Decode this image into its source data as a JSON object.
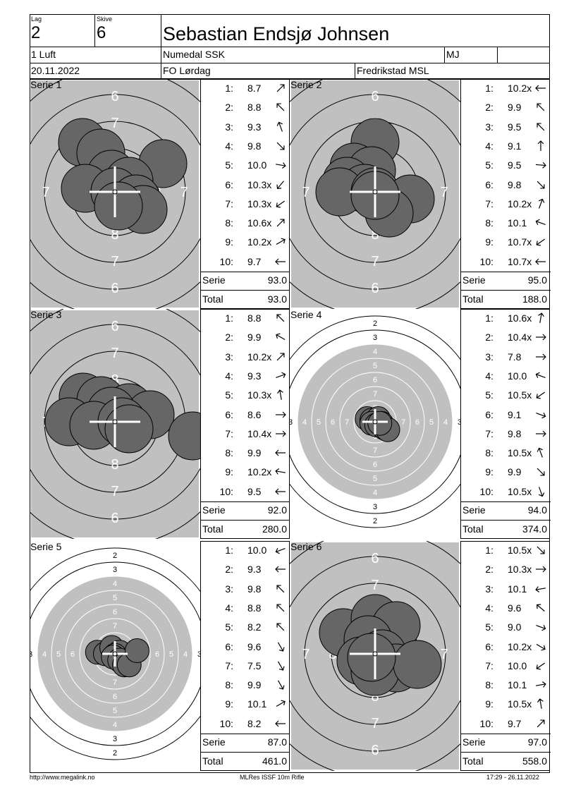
{
  "header": {
    "lag_label": "Lag",
    "lag_value": "2",
    "skive_label": "Skive",
    "skive_value": "6",
    "shooter_name": "Sebastian Endsjø Johnsen",
    "class": "1 Luft",
    "club": "Numedal SSK",
    "club_code": "MJ",
    "date": "20.11.2022",
    "event": "FO Lørdag",
    "venue": "Fredrikstad MSL"
  },
  "labels": {
    "serie": "Serie",
    "total": "Total"
  },
  "series": [
    {
      "label": "Serie 1",
      "target": "inner",
      "shots": [
        {
          "n": "1:",
          "v": "8.7",
          "dir": 45
        },
        {
          "n": "2:",
          "v": "8.8",
          "dir": -45
        },
        {
          "n": "3:",
          "v": "9.3",
          "dir": -20
        },
        {
          "n": "4:",
          "v": "9.8",
          "dir": 135
        },
        {
          "n": "5:",
          "v": "10.0",
          "dir": 100
        },
        {
          "n": "6:",
          "v": "10.3x",
          "dir": 220
        },
        {
          "n": "7:",
          "v": "10.3x",
          "dir": 235
        },
        {
          "n": "8:",
          "v": "10.6x",
          "dir": 45
        },
        {
          "n": "9:",
          "v": "10.2x",
          "dir": 60
        },
        {
          "n": "10:",
          "v": "9.7",
          "dir": 270
        }
      ],
      "serie_total": "93.0",
      "running_total": "93.0"
    },
    {
      "label": "Serie 2",
      "target": "inner",
      "shots": [
        {
          "n": "1:",
          "v": "10.2x",
          "dir": 270
        },
        {
          "n": "2:",
          "v": "9.9",
          "dir": -45
        },
        {
          "n": "3:",
          "v": "9.5",
          "dir": -45
        },
        {
          "n": "4:",
          "v": "9.1",
          "dir": 0
        },
        {
          "n": "5:",
          "v": "9.5",
          "dir": 95
        },
        {
          "n": "6:",
          "v": "9.8",
          "dir": 135
        },
        {
          "n": "7:",
          "v": "10.2x",
          "dir": 20
        },
        {
          "n": "8:",
          "v": "10.1",
          "dir": -70
        },
        {
          "n": "9:",
          "v": "10.7x",
          "dir": 235
        },
        {
          "n": "10:",
          "v": "10.7x",
          "dir": 270
        }
      ],
      "serie_total": "95.0",
      "running_total": "188.0"
    },
    {
      "label": "Serie 3",
      "target": "inner",
      "shots": [
        {
          "n": "1:",
          "v": "8.8",
          "dir": -45
        },
        {
          "n": "2:",
          "v": "9.9",
          "dir": -60
        },
        {
          "n": "3:",
          "v": "10.2x",
          "dir": 45
        },
        {
          "n": "4:",
          "v": "9.3",
          "dir": 70
        },
        {
          "n": "5:",
          "v": "10.3x",
          "dir": -10
        },
        {
          "n": "6:",
          "v": "8.6",
          "dir": 90
        },
        {
          "n": "7:",
          "v": "10.4x",
          "dir": 90
        },
        {
          "n": "8:",
          "v": "9.9",
          "dir": 270
        },
        {
          "n": "9:",
          "v": "10.2x",
          "dir": -80
        },
        {
          "n": "10:",
          "v": "9.5",
          "dir": 270
        }
      ],
      "serie_total": "92.0",
      "running_total": "280.0"
    },
    {
      "label": "Serie 4",
      "target": "full",
      "shots": [
        {
          "n": "1:",
          "v": "10.6x",
          "dir": 10
        },
        {
          "n": "2:",
          "v": "10.4x",
          "dir": 90
        },
        {
          "n": "3:",
          "v": "7.8",
          "dir": 90
        },
        {
          "n": "4:",
          "v": "10.0",
          "dir": -70
        },
        {
          "n": "5:",
          "v": "10.5x",
          "dir": 235
        },
        {
          "n": "6:",
          "v": "9.1",
          "dir": 110
        },
        {
          "n": "7:",
          "v": "9.8",
          "dir": 90
        },
        {
          "n": "8:",
          "v": "10.5x",
          "dir": -20
        },
        {
          "n": "9:",
          "v": "9.9",
          "dir": 135
        },
        {
          "n": "10:",
          "v": "10.5x",
          "dir": 160
        }
      ],
      "serie_total": "94.0",
      "running_total": "374.0"
    },
    {
      "label": "Serie 5",
      "target": "full",
      "shots": [
        {
          "n": "1:",
          "v": "10.0",
          "dir": -110
        },
        {
          "n": "2:",
          "v": "9.3",
          "dir": 270
        },
        {
          "n": "3:",
          "v": "9.8",
          "dir": -45
        },
        {
          "n": "4:",
          "v": "8.8",
          "dir": -45
        },
        {
          "n": "5:",
          "v": "8.2",
          "dir": -45
        },
        {
          "n": "6:",
          "v": "9.6",
          "dir": 150
        },
        {
          "n": "7:",
          "v": "7.5",
          "dir": 150
        },
        {
          "n": "8:",
          "v": "9.9",
          "dir": 150
        },
        {
          "n": "9:",
          "v": "10.1",
          "dir": 60
        },
        {
          "n": "10:",
          "v": "8.2",
          "dir": 270
        }
      ],
      "serie_total": "87.0",
      "running_total": "461.0"
    },
    {
      "label": "Serie 6",
      "target": "inner",
      "shots": [
        {
          "n": "1:",
          "v": "10.5x",
          "dir": 135
        },
        {
          "n": "2:",
          "v": "10.3x",
          "dir": 90
        },
        {
          "n": "3:",
          "v": "10.1",
          "dir": -100
        },
        {
          "n": "4:",
          "v": "9.6",
          "dir": -50
        },
        {
          "n": "5:",
          "v": "9.0",
          "dir": 110
        },
        {
          "n": "6:",
          "v": "10.2x",
          "dir": 120
        },
        {
          "n": "7:",
          "v": "10.0",
          "dir": 235
        },
        {
          "n": "8:",
          "v": "10.1",
          "dir": 80
        },
        {
          "n": "9:",
          "v": "10.5x",
          "dir": -10
        },
        {
          "n": "10:",
          "v": "9.7",
          "dir": 45
        }
      ],
      "serie_total": "97.0",
      "running_total": "558.0"
    }
  ],
  "target_numbers": {
    "inner": [
      "6",
      "7",
      "8"
    ],
    "full": [
      "2",
      "3",
      "4",
      "5",
      "6",
      "7",
      "8"
    ]
  },
  "colors": {
    "target_gray": "#c0c0c0",
    "shot_fill": "#666666"
  },
  "footer": {
    "left": "http://www.megalink.no",
    "center": "MLRes ISSF 10m Rifle",
    "right": "17:29 - 26.11.2022"
  }
}
